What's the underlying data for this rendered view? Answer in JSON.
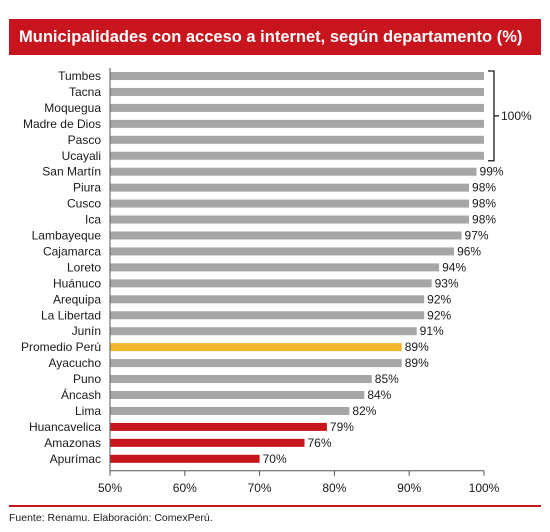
{
  "chart_data": {
    "type": "bar",
    "orientation": "horizontal",
    "title": "Municipalidades con acceso a internet, según departamento (%)",
    "source": "Fuente: Renamu. Elaboración: ComexPerú.",
    "categories": [
      "Tumbes",
      "Tacna",
      "Moquegua",
      "Madre de Dios",
      "Pasco",
      "Ucayali",
      "San Martín",
      "Piura",
      "Cusco",
      "Ica",
      "Lambayeque",
      "Cajamarca",
      "Loreto",
      "Huánuco",
      "Arequipa",
      "La Libertad",
      "Junín",
      "Promedio Perú",
      "Ayacucho",
      "Puno",
      "Áncash",
      "Lima",
      "Huancavelica",
      "Amazonas",
      "Apurímac"
    ],
    "values": [
      100,
      100,
      100,
      100,
      100,
      100,
      99,
      98,
      98,
      98,
      97,
      96,
      94,
      93,
      92,
      92,
      91,
      89,
      89,
      85,
      84,
      82,
      79,
      76,
      70
    ],
    "value_labels": [
      "",
      "",
      "",
      "",
      "",
      "",
      "99%",
      "98%",
      "98%",
      "98%",
      "97%",
      "96%",
      "94%",
      "93%",
      "92%",
      "92%",
      "91%",
      "89%",
      "89%",
      "85%",
      "84%",
      "82%",
      "79%",
      "76%",
      "70%"
    ],
    "bar_colors": [
      "#a6a6a6",
      "#a6a6a6",
      "#a6a6a6",
      "#a6a6a6",
      "#a6a6a6",
      "#a6a6a6",
      "#a6a6a6",
      "#a6a6a6",
      "#a6a6a6",
      "#a6a6a6",
      "#a6a6a6",
      "#a6a6a6",
      "#a6a6a6",
      "#a6a6a6",
      "#a6a6a6",
      "#a6a6a6",
      "#a6a6a6",
      "#f0b62d",
      "#a6a6a6",
      "#a6a6a6",
      "#a6a6a6",
      "#a6a6a6",
      "#c8141c",
      "#c8141c",
      "#c8141c"
    ],
    "group_annotation": "100%",
    "xlim": [
      50,
      100
    ],
    "xticks": [
      "50%",
      "60%",
      "70%",
      "80%",
      "90%",
      "100%"
    ],
    "grid": false
  }
}
